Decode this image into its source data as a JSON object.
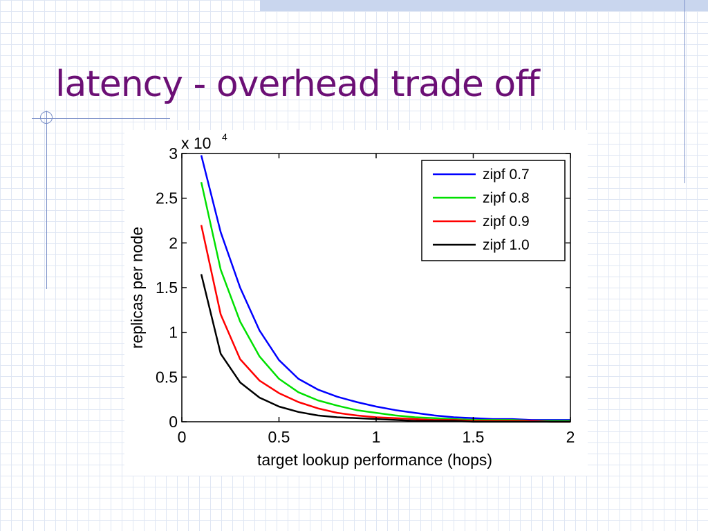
{
  "slide": {
    "title": "latency - overhead trade off"
  },
  "chart_data": {
    "type": "line",
    "title": "",
    "xlabel": "target lookup performance (hops)",
    "ylabel": "replicas per node",
    "y_multiplier_label": "x 10",
    "y_multiplier_exponent": "4",
    "xlim": [
      0,
      2
    ],
    "ylim": [
      0,
      3
    ],
    "x_ticks": [
      0,
      0.5,
      1,
      1.5,
      2
    ],
    "x_tick_labels": [
      "0",
      "0.5",
      "1",
      "1.5",
      "2"
    ],
    "y_ticks": [
      0,
      0.5,
      1,
      1.5,
      2,
      2.5,
      3
    ],
    "y_tick_labels": [
      "0",
      "0.5",
      "1",
      "1.5",
      "2",
      "2.5",
      "3"
    ],
    "grid": false,
    "legend_position": "top-right",
    "x": [
      0.1,
      0.2,
      0.3,
      0.4,
      0.5,
      0.6,
      0.7,
      0.8,
      0.9,
      1.0,
      1.1,
      1.2,
      1.3,
      1.4,
      1.5,
      1.6,
      1.7,
      1.8,
      1.9,
      2.0
    ],
    "series": [
      {
        "name": "zipf 0.7",
        "color": "#0000ff",
        "values": [
          2.98,
          2.12,
          1.5,
          1.02,
          0.69,
          0.48,
          0.36,
          0.28,
          0.22,
          0.17,
          0.13,
          0.1,
          0.07,
          0.05,
          0.04,
          0.03,
          0.03,
          0.02,
          0.02,
          0.02
        ]
      },
      {
        "name": "zipf 0.8",
        "color": "#00e000",
        "values": [
          2.68,
          1.7,
          1.12,
          0.73,
          0.48,
          0.33,
          0.24,
          0.18,
          0.13,
          0.1,
          0.07,
          0.05,
          0.04,
          0.03,
          0.02,
          0.02,
          0.02,
          0.01,
          0.01,
          0.01
        ]
      },
      {
        "name": "zipf 0.9",
        "color": "#ff0000",
        "values": [
          2.2,
          1.2,
          0.7,
          0.46,
          0.32,
          0.22,
          0.15,
          0.1,
          0.07,
          0.05,
          0.04,
          0.03,
          0.02,
          0.02,
          0.01,
          0.01,
          0.01,
          0.01,
          0.0,
          0.0
        ]
      },
      {
        "name": "zipf 1.0",
        "color": "#000000",
        "values": [
          1.65,
          0.76,
          0.44,
          0.27,
          0.17,
          0.11,
          0.07,
          0.05,
          0.04,
          0.03,
          0.02,
          0.01,
          0.01,
          0.01,
          0.0,
          0.0,
          0.0,
          0.0,
          0.0,
          0.0
        ]
      }
    ]
  }
}
